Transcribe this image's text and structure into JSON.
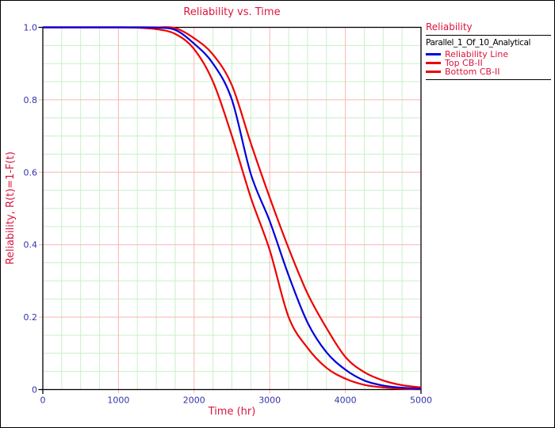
{
  "window": {
    "background": "#FFFFFF",
    "border_color": "#000000"
  },
  "chart": {
    "title": "Reliability vs. Time",
    "x_label": "Time (hr)",
    "y_label": "Reliability, R(t)=1-F(t)"
  },
  "axes": {
    "x_tick_labels": [
      "0",
      "1000",
      "2000",
      "3000",
      "4000",
      "5000"
    ],
    "y_tick_labels": [
      "1.0",
      "0.8",
      "0.6",
      "0.4",
      "0.2",
      "0"
    ]
  },
  "legend": {
    "title": "Reliability",
    "subtitle": "Parallel_1_Of_10_Analytical",
    "items": [
      {
        "label": "Reliability Line",
        "color": "#0000DD"
      },
      {
        "label": "Top CB-II",
        "color": "#EE0000"
      },
      {
        "label": "Bottom CB-II",
        "color": "#EE0000"
      }
    ]
  },
  "colors": {
    "title_text": "#DC143C",
    "axis_label_text": "#DC143C",
    "legend_label_text": "#DC143C",
    "tick_text": "#3333AA",
    "plot_border": "#000000",
    "grid_major": "#FFB3B3",
    "grid_minor": "#C9EFC9"
  },
  "chart_data": {
    "type": "line",
    "title": "Reliability vs. Time",
    "xlabel": "Time (hr)",
    "ylabel": "Reliability, R(t)=1-F(t)",
    "xlim": [
      0,
      5000
    ],
    "ylim": [
      0,
      1
    ],
    "x_major_step": 1000,
    "x_minor_step": 250,
    "y_major_step": 0.2,
    "y_minor_step": 0.05,
    "grid": true,
    "legend_position": "top-right",
    "x": [
      0,
      250,
      500,
      750,
      1000,
      1250,
      1500,
      1750,
      2000,
      2250,
      2500,
      2750,
      3000,
      3250,
      3500,
      3750,
      4000,
      4250,
      4500,
      4750,
      5000
    ],
    "series": [
      {
        "name": "Reliability Line",
        "color": "#0000DD",
        "values": [
          1.0,
          1.0,
          1.0,
          1.0,
          1.0,
          1.0,
          0.999,
          0.993,
          0.955,
          0.9,
          0.8,
          0.595,
          0.465,
          0.315,
          0.185,
          0.103,
          0.055,
          0.025,
          0.011,
          0.005,
          0.002
        ]
      },
      {
        "name": "Top CB-II",
        "color": "#EE0000",
        "values": [
          1.0,
          1.0,
          1.0,
          1.0,
          1.0,
          1.0,
          1.0,
          0.998,
          0.97,
          0.925,
          0.84,
          0.68,
          0.53,
          0.39,
          0.265,
          0.17,
          0.09,
          0.048,
          0.025,
          0.012,
          0.006
        ]
      },
      {
        "name": "Bottom CB-II",
        "color": "#EE0000",
        "values": [
          1.0,
          1.0,
          1.0,
          1.0,
          1.0,
          0.999,
          0.995,
          0.982,
          0.94,
          0.85,
          0.7,
          0.53,
          0.385,
          0.2,
          0.115,
          0.06,
          0.03,
          0.013,
          0.006,
          0.002,
          0.001
        ]
      }
    ]
  }
}
